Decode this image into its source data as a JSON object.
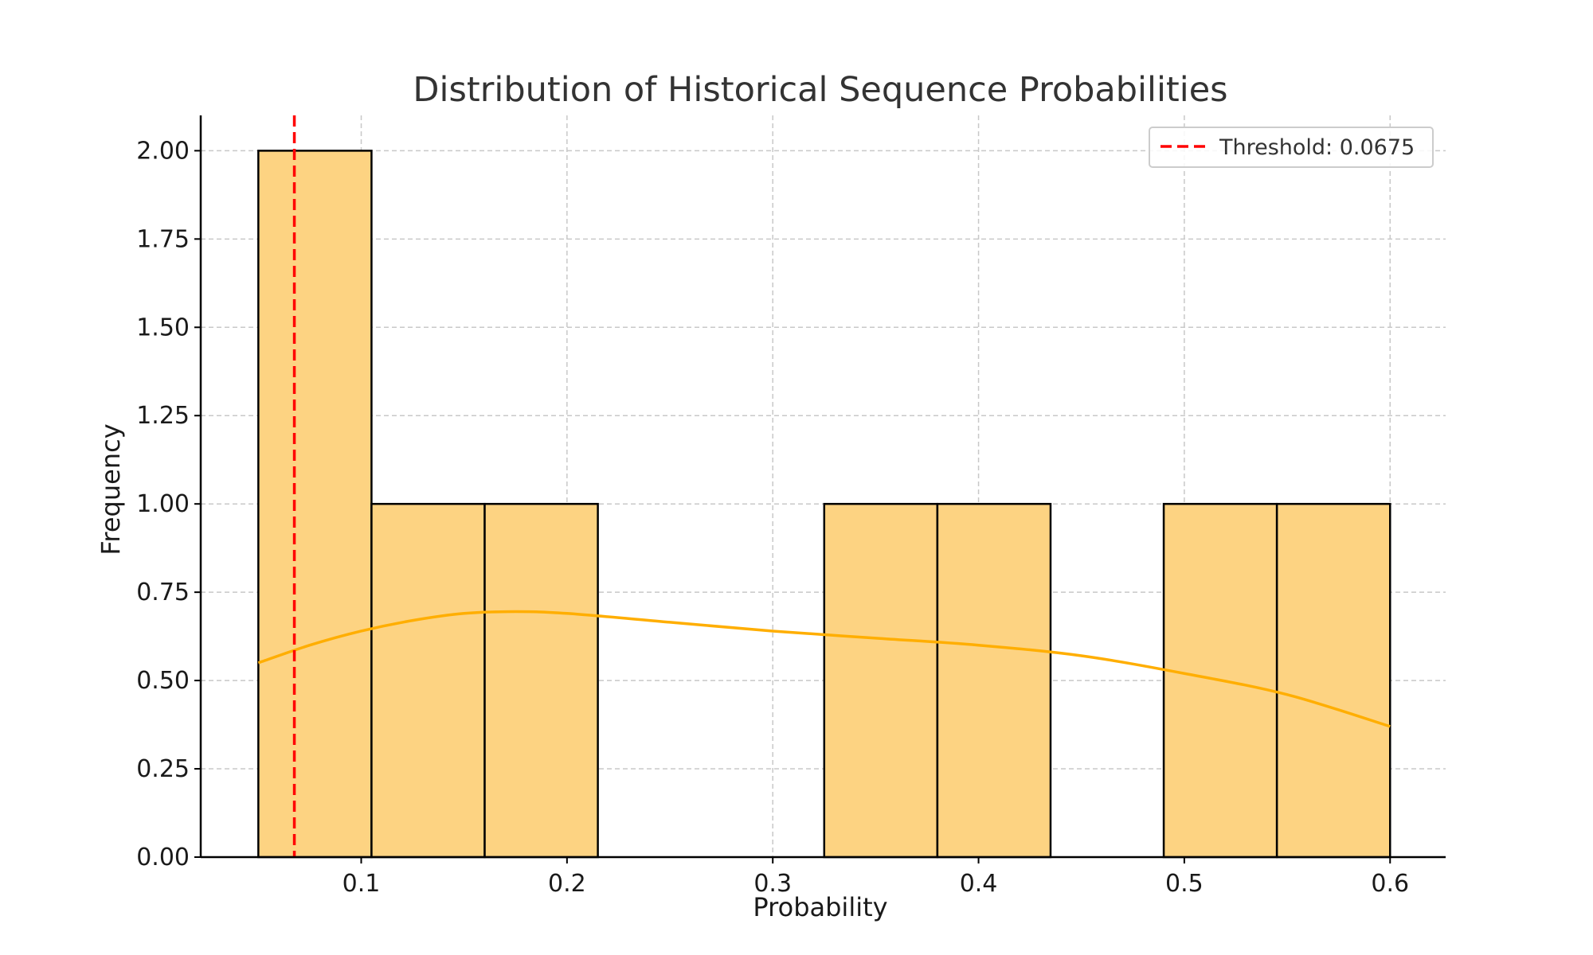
{
  "chart_data": {
    "type": "bar",
    "title": "Distribution of Historical Sequence Probabilities",
    "xlabel": "Probability",
    "ylabel": "Frequency",
    "xlim": [
      0.022,
      0.627
    ],
    "ylim": [
      0.0,
      2.1
    ],
    "x_ticks": [
      0.1,
      0.2,
      0.3,
      0.4,
      0.5,
      0.6
    ],
    "x_tick_labels": [
      "0.1",
      "0.2",
      "0.3",
      "0.4",
      "0.5",
      "0.6"
    ],
    "y_ticks": [
      0.0,
      0.25,
      0.5,
      0.75,
      1.0,
      1.25,
      1.5,
      1.75,
      2.0
    ],
    "y_tick_labels": [
      "0.00",
      "0.25",
      "0.50",
      "0.75",
      "1.00",
      "1.25",
      "1.50",
      "1.75",
      "2.00"
    ],
    "grid": true,
    "bins": [
      {
        "start": 0.05,
        "end": 0.105,
        "count": 2
      },
      {
        "start": 0.105,
        "end": 0.16,
        "count": 1
      },
      {
        "start": 0.16,
        "end": 0.215,
        "count": 1
      },
      {
        "start": 0.215,
        "end": 0.27,
        "count": 0
      },
      {
        "start": 0.27,
        "end": 0.325,
        "count": 0
      },
      {
        "start": 0.325,
        "end": 0.38,
        "count": 1
      },
      {
        "start": 0.38,
        "end": 0.435,
        "count": 1
      },
      {
        "start": 0.435,
        "end": 0.49,
        "count": 0
      },
      {
        "start": 0.49,
        "end": 0.545,
        "count": 1
      },
      {
        "start": 0.545,
        "end": 0.6,
        "count": 1
      }
    ],
    "kde": {
      "x": [
        0.05,
        0.075,
        0.1,
        0.125,
        0.15,
        0.175,
        0.2,
        0.25,
        0.3,
        0.35,
        0.4,
        0.45,
        0.5,
        0.55,
        0.6
      ],
      "y": [
        0.55,
        0.6,
        0.64,
        0.67,
        0.69,
        0.695,
        0.69,
        0.665,
        0.64,
        0.62,
        0.6,
        0.57,
        0.52,
        0.46,
        0.37
      ]
    },
    "threshold": {
      "value": 0.0675,
      "label": "Threshold: 0.0675"
    },
    "legend_position": "top-right",
    "colors": {
      "bar_fill": "#fdd382",
      "bar_edge": "#000000",
      "kde": "#ffae00",
      "threshold": "#ff0000",
      "grid": "#c8c8c8"
    }
  }
}
